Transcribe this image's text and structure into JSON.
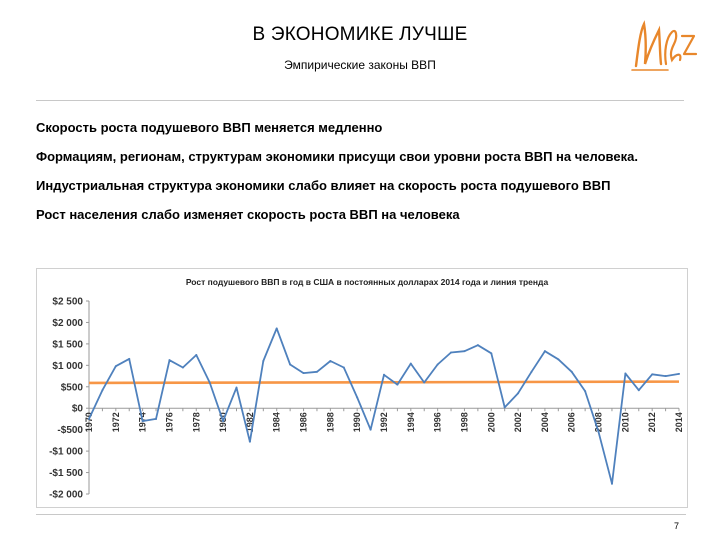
{
  "slide": {
    "title": "В ЭКОНОМИКЕ ЛУЧШЕ",
    "subtitle": "Эмпирические законы ВВП",
    "bullets": [
      "Скорость роста подушевого ВВП меняется медленно",
      "Формациям, регионам, структурам экономики присущи свои уровни роста ВВП на человека.",
      "Индустриальная структура экономики слабо влияет на скорость роста подушевого ВВП",
      "Рост населения слабо изменяет скорость роста ВВП на человека"
    ],
    "page_number": "7",
    "colors": {
      "series_line": "#4f81bd",
      "trend_line": "#f79646",
      "logo": "#e8872b"
    }
  },
  "chart_data": {
    "type": "line",
    "title": "Рост подушевого ВВП в год в США в постоянных долларах 2014 года и линия тренда",
    "xlabel": "",
    "ylabel": "",
    "ylim": [
      -2000,
      2500
    ],
    "y_ticks": [
      2500,
      2000,
      1500,
      1000,
      500,
      0,
      -500,
      -1000,
      -1500,
      -2000
    ],
    "y_tick_labels": [
      "$2 500",
      "$2 000",
      "$1 500",
      "$1 000",
      "$500",
      "$0",
      "-$500",
      "-$1 000",
      "-$1 500",
      "-$2 000"
    ],
    "x_tick_labels": [
      "1970",
      "1972",
      "1974",
      "1976",
      "1978",
      "1980",
      "1982",
      "1984",
      "1986",
      "1988",
      "1990",
      "1992",
      "1994",
      "1996",
      "1998",
      "2000",
      "2002",
      "2004",
      "2006",
      "2008",
      "2010",
      "2012",
      "2014"
    ],
    "grid": false,
    "legend": "none",
    "x": [
      1970,
      1971,
      1972,
      1973,
      1974,
      1975,
      1976,
      1977,
      1978,
      1979,
      1980,
      1981,
      1982,
      1983,
      1984,
      1985,
      1986,
      1987,
      1988,
      1989,
      1990,
      1991,
      1992,
      1993,
      1994,
      1995,
      1996,
      1997,
      1998,
      1999,
      2000,
      2001,
      2002,
      2003,
      2004,
      2005,
      2006,
      2007,
      2008,
      2009,
      2010,
      2011,
      2012,
      2013,
      2014
    ],
    "series": [
      {
        "values": [
          -250,
          420,
          980,
          1150,
          -300,
          -250,
          1120,
          950,
          1240,
          600,
          -300,
          480,
          -780,
          1100,
          1860,
          1020,
          820,
          850,
          1100,
          950,
          250,
          -500,
          780,
          550,
          1040,
          600,
          1020,
          1300,
          1330,
          1470,
          1280,
          20,
          350,
          850,
          1330,
          1140,
          850,
          400,
          -550,
          -1760,
          810,
          420,
          790,
          750,
          800
        ]
      }
    ],
    "trend": {
      "type": "linear",
      "start": {
        "x": 1970,
        "y": 590
      },
      "end": {
        "x": 2014,
        "y": 620
      }
    }
  }
}
